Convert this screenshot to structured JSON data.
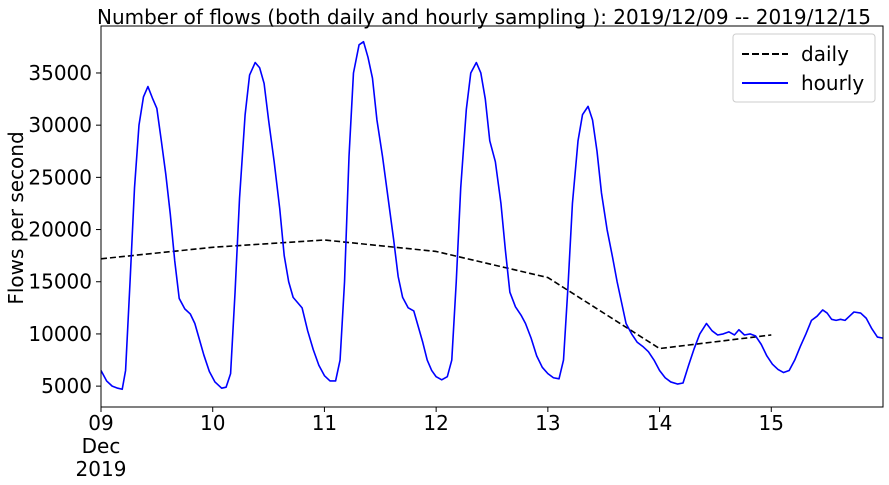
{
  "chart_data": {
    "type": "line",
    "title": "Number of flows (both daily and hourly sampling ): 2019/12/09 -- 2019/12/15",
    "xlabel": "",
    "ylabel": "Flows per second",
    "x_range": [
      9,
      16
    ],
    "ylim": [
      3000,
      39500
    ],
    "x_ticks": [
      {
        "value": 9,
        "lines": [
          "09",
          "Dec",
          "2019"
        ]
      },
      {
        "value": 10,
        "lines": [
          "10"
        ]
      },
      {
        "value": 11,
        "lines": [
          "11"
        ]
      },
      {
        "value": 12,
        "lines": [
          "12"
        ]
      },
      {
        "value": 13,
        "lines": [
          "13"
        ]
      },
      {
        "value": 14,
        "lines": [
          "14"
        ]
      },
      {
        "value": 15,
        "lines": [
          "15"
        ]
      }
    ],
    "y_ticks": [
      5000,
      10000,
      15000,
      20000,
      25000,
      30000,
      35000
    ],
    "grid": false,
    "legend_position": "top-right",
    "series": [
      {
        "name": "daily",
        "color": "#000000",
        "style": "dashed",
        "points": [
          [
            9,
            17200
          ],
          [
            10,
            18300
          ],
          [
            11,
            19000
          ],
          [
            12,
            17900
          ],
          [
            13,
            15400
          ],
          [
            14,
            8600
          ],
          [
            15,
            9900
          ]
        ]
      },
      {
        "name": "hourly",
        "color": "#0000ff",
        "style": "solid",
        "points": [
          [
            9.0,
            6500
          ],
          [
            9.05,
            5500
          ],
          [
            9.1,
            5000
          ],
          [
            9.15,
            4800
          ],
          [
            9.19,
            4700
          ],
          [
            9.22,
            6500
          ],
          [
            9.26,
            15000
          ],
          [
            9.3,
            24000
          ],
          [
            9.34,
            30000
          ],
          [
            9.38,
            32700
          ],
          [
            9.42,
            33700
          ],
          [
            9.46,
            32600
          ],
          [
            9.5,
            31600
          ],
          [
            9.54,
            28500
          ],
          [
            9.58,
            25300
          ],
          [
            9.62,
            21500
          ],
          [
            9.66,
            17000
          ],
          [
            9.7,
            13400
          ],
          [
            9.75,
            12400
          ],
          [
            9.8,
            11900
          ],
          [
            9.84,
            11000
          ],
          [
            9.88,
            9500
          ],
          [
            9.92,
            8000
          ],
          [
            9.97,
            6400
          ],
          [
            10.02,
            5400
          ],
          [
            10.08,
            4800
          ],
          [
            10.12,
            4900
          ],
          [
            10.16,
            6200
          ],
          [
            10.2,
            14000
          ],
          [
            10.24,
            23000
          ],
          [
            10.29,
            31000
          ],
          [
            10.33,
            34800
          ],
          [
            10.38,
            36000
          ],
          [
            10.42,
            35500
          ],
          [
            10.46,
            34000
          ],
          [
            10.5,
            30500
          ],
          [
            10.55,
            26500
          ],
          [
            10.6,
            22000
          ],
          [
            10.64,
            17500
          ],
          [
            10.68,
            15000
          ],
          [
            10.72,
            13500
          ],
          [
            10.76,
            13000
          ],
          [
            10.8,
            12500
          ],
          [
            10.85,
            10300
          ],
          [
            10.9,
            8500
          ],
          [
            10.95,
            7000
          ],
          [
            11.0,
            6000
          ],
          [
            11.05,
            5500
          ],
          [
            11.1,
            5500
          ],
          [
            11.14,
            7500
          ],
          [
            11.18,
            15000
          ],
          [
            11.22,
            27000
          ],
          [
            11.26,
            35000
          ],
          [
            11.31,
            37700
          ],
          [
            11.35,
            38000
          ],
          [
            11.39,
            36500
          ],
          [
            11.43,
            34500
          ],
          [
            11.47,
            30500
          ],
          [
            11.52,
            27000
          ],
          [
            11.57,
            23000
          ],
          [
            11.62,
            19000
          ],
          [
            11.66,
            15500
          ],
          [
            11.7,
            13500
          ],
          [
            11.75,
            12500
          ],
          [
            11.8,
            12200
          ],
          [
            11.84,
            10700
          ],
          [
            11.88,
            9200
          ],
          [
            11.92,
            7500
          ],
          [
            11.96,
            6500
          ],
          [
            12.0,
            5900
          ],
          [
            12.05,
            5600
          ],
          [
            12.1,
            5900
          ],
          [
            12.14,
            7500
          ],
          [
            12.18,
            15000
          ],
          [
            12.22,
            24000
          ],
          [
            12.27,
            31500
          ],
          [
            12.31,
            35000
          ],
          [
            12.36,
            36000
          ],
          [
            12.4,
            35000
          ],
          [
            12.44,
            32500
          ],
          [
            12.48,
            28500
          ],
          [
            12.53,
            26500
          ],
          [
            12.58,
            22500
          ],
          [
            12.62,
            18000
          ],
          [
            12.66,
            14000
          ],
          [
            12.71,
            12600
          ],
          [
            12.76,
            11800
          ],
          [
            12.8,
            11000
          ],
          [
            12.85,
            9600
          ],
          [
            12.9,
            7900
          ],
          [
            12.95,
            6800
          ],
          [
            13.0,
            6200
          ],
          [
            13.05,
            5800
          ],
          [
            13.1,
            5700
          ],
          [
            13.14,
            7500
          ],
          [
            13.18,
            14500
          ],
          [
            13.22,
            22500
          ],
          [
            13.27,
            28500
          ],
          [
            13.31,
            31000
          ],
          [
            13.36,
            31800
          ],
          [
            13.4,
            30500
          ],
          [
            13.44,
            27500
          ],
          [
            13.48,
            23500
          ],
          [
            13.53,
            20000
          ],
          [
            13.58,
            17300
          ],
          [
            13.62,
            15000
          ],
          [
            13.66,
            13000
          ],
          [
            13.7,
            11000
          ],
          [
            13.75,
            10000
          ],
          [
            13.8,
            9200
          ],
          [
            13.85,
            8800
          ],
          [
            13.9,
            8300
          ],
          [
            13.95,
            7500
          ],
          [
            14.0,
            6500
          ],
          [
            14.05,
            5800
          ],
          [
            14.1,
            5400
          ],
          [
            14.16,
            5200
          ],
          [
            14.21,
            5300
          ],
          [
            14.26,
            7000
          ],
          [
            14.31,
            8600
          ],
          [
            14.36,
            10000
          ],
          [
            14.42,
            11000
          ],
          [
            14.47,
            10300
          ],
          [
            14.52,
            9900
          ],
          [
            14.57,
            10000
          ],
          [
            14.62,
            10200
          ],
          [
            14.67,
            9900
          ],
          [
            14.71,
            10400
          ],
          [
            14.76,
            9900
          ],
          [
            14.81,
            10000
          ],
          [
            14.86,
            9800
          ],
          [
            14.91,
            9000
          ],
          [
            14.96,
            7900
          ],
          [
            15.01,
            7100
          ],
          [
            15.06,
            6600
          ],
          [
            15.11,
            6300
          ],
          [
            15.16,
            6500
          ],
          [
            15.21,
            7500
          ],
          [
            15.26,
            8800
          ],
          [
            15.31,
            10000
          ],
          [
            15.36,
            11300
          ],
          [
            15.41,
            11700
          ],
          [
            15.46,
            12300
          ],
          [
            15.5,
            12000
          ],
          [
            15.54,
            11400
          ],
          [
            15.58,
            11300
          ],
          [
            15.62,
            11400
          ],
          [
            15.66,
            11300
          ],
          [
            15.7,
            11700
          ],
          [
            15.74,
            12100
          ],
          [
            15.8,
            12000
          ],
          [
            15.85,
            11500
          ],
          [
            15.9,
            10500
          ],
          [
            15.95,
            9700
          ],
          [
            16.0,
            9600
          ]
        ]
      }
    ]
  }
}
